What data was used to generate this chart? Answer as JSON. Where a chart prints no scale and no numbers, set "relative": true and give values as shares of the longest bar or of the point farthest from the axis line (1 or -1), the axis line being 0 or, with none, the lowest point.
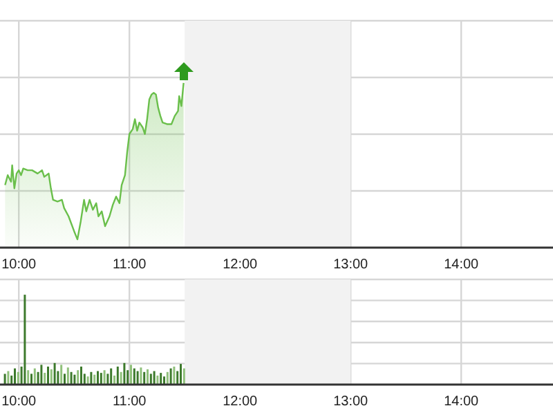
{
  "chart_data": [
    {
      "type": "area",
      "relative": true,
      "grid": true,
      "xlim": [
        9.83,
        14.83
      ],
      "xticks": [
        {
          "value": 10,
          "label": "10:00"
        },
        {
          "value": 11,
          "label": "11:00"
        },
        {
          "value": 12,
          "label": "12:00"
        },
        {
          "value": 13,
          "label": "13:00"
        },
        {
          "value": 14,
          "label": "14:00"
        }
      ],
      "bands": [
        {
          "axis": "x",
          "from": 11.5,
          "to": 13,
          "color": "#f2f2f2"
        }
      ],
      "series": [
        {
          "color": "#6abf4b",
          "x": [
            9.876,
            9.9,
            9.93,
            9.94,
            9.96,
            9.98,
            10.0,
            10.02,
            10.04,
            10.08,
            10.12,
            10.17,
            10.21,
            10.23,
            10.27,
            10.29,
            10.31,
            10.35,
            10.39,
            10.41,
            10.45,
            10.5,
            10.53,
            10.56,
            10.59,
            10.61,
            10.64,
            10.67,
            10.7,
            10.72,
            10.75,
            10.78,
            10.82,
            10.85,
            10.88,
            10.91,
            10.93,
            10.96,
            10.98,
            11.0,
            11.03,
            11.05,
            11.07,
            11.09,
            11.12,
            11.14,
            11.16,
            11.18,
            11.2,
            11.22,
            11.24,
            11.26,
            11.28,
            11.3,
            11.34,
            11.38,
            11.41,
            11.44,
            11.45,
            11.47,
            11.49
          ],
          "values": [
            0.38,
            0.44,
            0.4,
            0.5,
            0.36,
            0.45,
            0.47,
            0.44,
            0.48,
            0.47,
            0.47,
            0.45,
            0.47,
            0.43,
            0.45,
            0.36,
            0.29,
            0.28,
            0.29,
            0.24,
            0.19,
            0.1,
            0.05,
            0.16,
            0.29,
            0.22,
            0.29,
            0.23,
            0.27,
            0.19,
            0.22,
            0.13,
            0.19,
            0.26,
            0.31,
            0.27,
            0.38,
            0.44,
            0.58,
            0.69,
            0.72,
            0.78,
            0.71,
            0.76,
            0.73,
            0.69,
            0.78,
            0.9,
            0.93,
            0.94,
            0.93,
            0.85,
            0.8,
            0.76,
            0.75,
            0.75,
            0.8,
            0.83,
            0.92,
            0.86,
            1
          ]
        }
      ]
    },
    {
      "type": "bar",
      "relative": true,
      "grid": true,
      "xlim": [
        9.83,
        14.83
      ],
      "xticks": [
        {
          "value": 10,
          "label": "10:00"
        },
        {
          "value": 11,
          "label": "11:00"
        },
        {
          "value": 12,
          "label": "12:00"
        },
        {
          "value": 13,
          "label": "13:00"
        },
        {
          "value": 14,
          "label": "14:00"
        }
      ],
      "bands": [
        {
          "axis": "x",
          "from": 11.5,
          "to": 13,
          "color": "#f2f2f2"
        }
      ],
      "x": [
        9.88,
        9.91,
        9.94,
        9.97,
        10.0,
        10.03,
        10.06,
        10.09,
        10.12,
        10.15,
        10.18,
        10.21,
        10.24,
        10.27,
        10.3,
        10.33,
        10.36,
        10.39,
        10.42,
        10.45,
        10.48,
        10.51,
        10.54,
        10.57,
        10.6,
        10.63,
        10.66,
        10.69,
        10.72,
        10.75,
        10.78,
        10.81,
        10.84,
        10.87,
        10.9,
        10.93,
        10.96,
        10.99,
        11.02,
        11.05,
        11.08,
        11.11,
        11.14,
        11.17,
        11.2,
        11.23,
        11.26,
        11.29,
        11.32,
        11.35,
        11.38,
        11.41,
        11.44,
        11.47,
        11.5
      ],
      "values": [
        0.12,
        0.15,
        0.1,
        0.18,
        0.14,
        0.2,
        1,
        0.16,
        0.12,
        0.18,
        0.14,
        0.22,
        0.13,
        0.2,
        0.17,
        0.24,
        0.15,
        0.22,
        0.12,
        0.19,
        0.14,
        0.11,
        0.16,
        0.2,
        0.12,
        0.09,
        0.14,
        0.11,
        0.15,
        0.13,
        0.16,
        0.12,
        0.18,
        0.1,
        0.2,
        0.14,
        0.24,
        0.16,
        0.22,
        0.18,
        0.15,
        0.19,
        0.14,
        0.17,
        0.12,
        0.15,
        0.1,
        0.13,
        0.09,
        0.14,
        0.18,
        0.2,
        0.15,
        0.23,
        0.18
      ],
      "colors": [
        "#3d7a2c",
        "#8fc07a",
        "#3d7a2c",
        "#3d7a2c",
        "#8fc07a",
        "#3d7a2c",
        "#3d7a2c",
        "#8fc07a",
        "#3d7a2c",
        "#8fc07a",
        "#3d7a2c",
        "#3d7a2c",
        "#8fc07a",
        "#3d7a2c",
        "#8fc07a",
        "#3d7a2c",
        "#3d7a2c",
        "#8fc07a",
        "#3d7a2c",
        "#8fc07a",
        "#3d7a2c",
        "#3d7a2c",
        "#8fc07a",
        "#3d7a2c",
        "#3d7a2c",
        "#8fc07a",
        "#3d7a2c",
        "#8fc07a",
        "#3d7a2c",
        "#3d7a2c",
        "#8fc07a",
        "#3d7a2c",
        "#3d7a2c",
        "#8fc07a",
        "#3d7a2c",
        "#8fc07a",
        "#3d7a2c",
        "#3d7a2c",
        "#8fc07a",
        "#3d7a2c",
        "#3d7a2c",
        "#8fc07a",
        "#3d7a2c",
        "#8fc07a",
        "#3d7a2c",
        "#3d7a2c",
        "#8fc07a",
        "#3d7a2c",
        "#3d7a2c",
        "#8fc07a",
        "#3d7a2c",
        "#8fc07a",
        "#3d7a2c",
        "#3d7a2c",
        "#8fc07a"
      ]
    }
  ]
}
